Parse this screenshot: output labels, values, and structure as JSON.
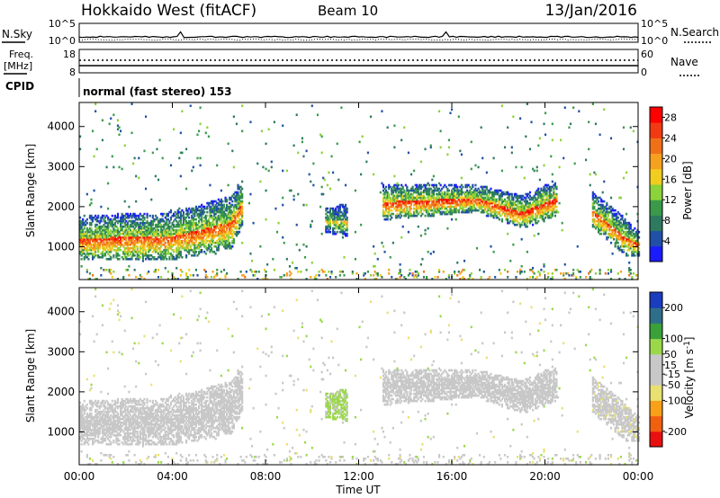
{
  "header": {
    "station": "Hokkaido West (fitACF)",
    "beam": "Beam 10",
    "date": "13/Jan/2016"
  },
  "strip_panels": {
    "nsky_label": "N.Sky",
    "nsearch_label": "N.Search",
    "nsky_ticks": [
      "10^5",
      "10^0"
    ],
    "nsearch_ticks": [
      "10^5",
      "10^0"
    ],
    "freq_label_line1": "Freq.",
    "freq_label_line2": "[MHz]",
    "freq_ticks": [
      "18",
      "8"
    ],
    "nave_label": "Nave",
    "nave_ticks": [
      "60",
      "0"
    ],
    "cpid_label": "CPID",
    "cpid_text": "normal (fast stereo) 153"
  },
  "colors": {
    "power_scale": [
      "#1b1bff",
      "#2050a8",
      "#2e7a5f",
      "#3a9a4a",
      "#8cd23a",
      "#f0cd1e",
      "#f6a020",
      "#f07018",
      "#f23a12",
      "#ff0000"
    ],
    "velocity_scale": [
      "#e81010",
      "#f06010",
      "#f8a018",
      "#e8e070",
      "#c8c8c8",
      "#c8c8c8",
      "#9ad84a",
      "#3aa03a",
      "#2e6e8a",
      "#1a3cbe"
    ]
  },
  "chart_data": [
    {
      "type": "heatmap",
      "title": "Power",
      "xlabel": "",
      "ylabel": "Slant Range [km]",
      "xlim": [
        "00:00",
        "00:00"
      ],
      "x_ticks": [
        "00:00",
        "04:00",
        "08:00",
        "12:00",
        "16:00",
        "20:00",
        "00:00"
      ],
      "ylim": [
        180,
        4600
      ],
      "y_ticks": [
        1000,
        2000,
        3000,
        4000
      ],
      "colorbar": {
        "label": "Power [dB]",
        "ticks": [
          4,
          8,
          12,
          16,
          20,
          24,
          28
        ],
        "range": [
          0,
          30
        ]
      },
      "echo_regions": [
        {
          "time_hours": [
            0,
            4.0,
            6.5,
            7.0
          ],
          "range_km": [
            [
              700,
              1700
            ],
            [
              700,
              1800
            ],
            [
              1000,
              2200
            ],
            [
              1600,
              2600
            ]
          ],
          "peak_power_db": 26
        },
        {
          "time_hours": [
            10.5,
            11.5
          ],
          "range_km": [
            [
              1400,
              1900
            ],
            [
              1300,
              2000
            ]
          ],
          "peak_power_db": 18
        },
        {
          "time_hours": [
            13.0,
            17.0,
            19.0,
            20.5
          ],
          "range_km": [
            [
              1700,
              2500
            ],
            [
              1900,
              2500
            ],
            [
              1500,
              2200
            ],
            [
              1800,
              2600
            ]
          ],
          "peak_power_db": 28
        },
        {
          "time_hours": [
            22.0,
            23.5,
            24.0
          ],
          "range_km": [
            [
              1500,
              2300
            ],
            [
              800,
              1600
            ],
            [
              800,
              1300
            ]
          ],
          "peak_power_db": 26
        }
      ]
    },
    {
      "type": "heatmap",
      "title": "Velocity",
      "xlabel": "Time UT",
      "ylabel": "Slant Range [km]",
      "xlim": [
        "00:00",
        "00:00"
      ],
      "x_ticks": [
        "00:00",
        "04:00",
        "08:00",
        "12:00",
        "16:00",
        "20:00",
        "00:00"
      ],
      "ylim": [
        180,
        4600
      ],
      "y_ticks": [
        1000,
        2000,
        3000,
        4000
      ],
      "colorbar": {
        "label": "Velocity [m s^-1]",
        "ticks": [
          -200,
          -100,
          -50,
          -15,
          15,
          50,
          100,
          200
        ],
        "range": [
          -250,
          250
        ]
      },
      "echo_regions": [
        {
          "time_hours": [
            0,
            4.0,
            6.5,
            7.0
          ],
          "range_km": [
            [
              700,
              1700
            ],
            [
              700,
              1800
            ],
            [
              1000,
              2200
            ],
            [
              1600,
              2600
            ]
          ],
          "typical_velocity": 0
        },
        {
          "time_hours": [
            10.5,
            11.5
          ],
          "range_km": [
            [
              1400,
              1900
            ],
            [
              1300,
              2000
            ]
          ],
          "typical_velocity": 60
        },
        {
          "time_hours": [
            13.0,
            17.0,
            19.0,
            20.5
          ],
          "range_km": [
            [
              1700,
              2500
            ],
            [
              1900,
              2500
            ],
            [
              1500,
              2200
            ],
            [
              1800,
              2600
            ]
          ],
          "typical_velocity": -10
        },
        {
          "time_hours": [
            22.0,
            23.5,
            24.0
          ],
          "range_km": [
            [
              1500,
              2300
            ],
            [
              800,
              1600
            ],
            [
              800,
              1300
            ]
          ],
          "typical_velocity": -20
        }
      ]
    }
  ]
}
